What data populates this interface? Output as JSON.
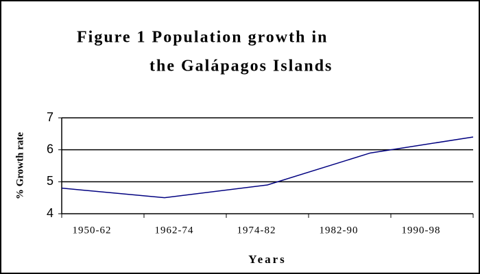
{
  "chart_data": {
    "type": "line",
    "title": [
      "Figure 1  Population growth in",
      "the Galápagos Islands"
    ],
    "x_label": "Years",
    "y_label": "% Growth rate",
    "categories": [
      "1950-62",
      "1962-74",
      "1974-82",
      "1982-90",
      "1990-98"
    ],
    "series": [
      {
        "name": "% Growth rate",
        "color": "#000080",
        "values": [
          4.8,
          4.5,
          4.9,
          5.9,
          6.4
        ]
      }
    ],
    "ylim": [
      4,
      7
    ],
    "yticks": [
      4,
      5,
      6,
      7
    ],
    "grid": true
  }
}
